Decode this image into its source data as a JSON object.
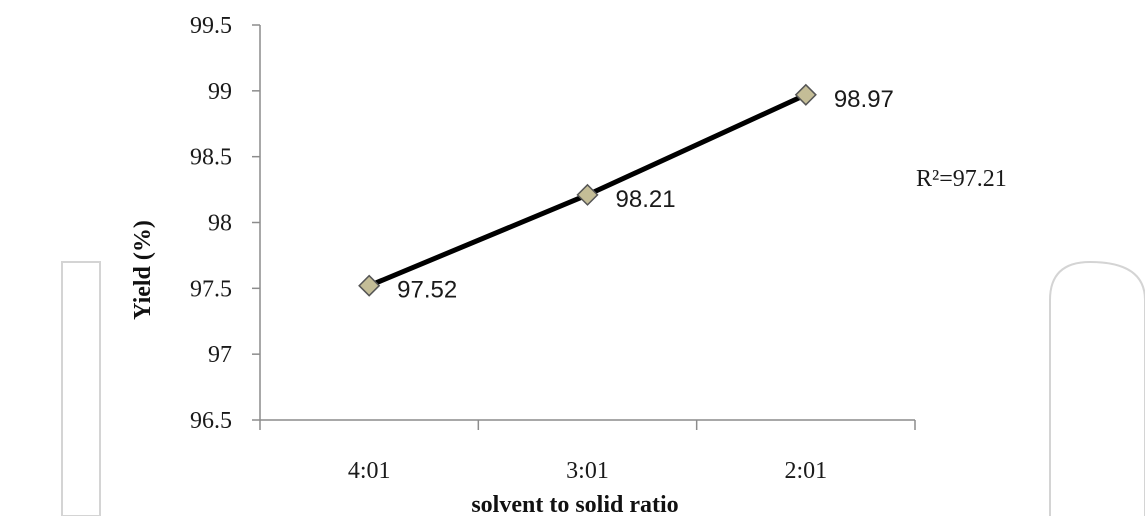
{
  "chart_data": {
    "type": "line",
    "categories": [
      "4:01",
      "3:01",
      "2:01"
    ],
    "series": [
      {
        "values": [
          97.52,
          98.21,
          98.97
        ]
      }
    ],
    "data_labels": [
      "97.52",
      "98.21",
      "98.97"
    ],
    "ylim": [
      96.5,
      99.5
    ],
    "yticks": [
      96.5,
      97,
      97.5,
      98,
      98.5,
      99,
      99.5
    ],
    "ytick_labels": [
      "96.5",
      "97",
      "97.5",
      "98",
      "98.5",
      "99",
      "99.5"
    ],
    "xlabel": "solvent to solid ratio",
    "ylabel": "Yield (%)",
    "annotation": "R²=97.21",
    "grid": false,
    "marker": "diamond",
    "line_color": "#000000",
    "marker_color": "#c4bd97"
  }
}
